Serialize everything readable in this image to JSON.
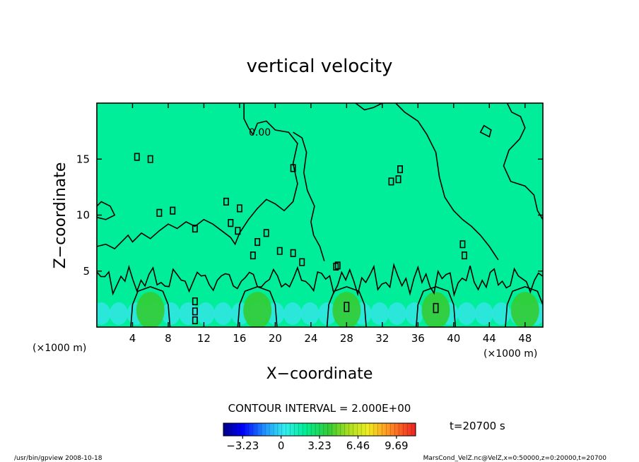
{
  "chart_data": {
    "type": "heatmap",
    "title": "vertical velocity",
    "xlabel": "X−coordinate",
    "ylabel": "Z−coordinate",
    "x_unit_left": "(×1000 m)",
    "x_unit_right": "(×1000 m)",
    "xlim": [
      0,
      50
    ],
    "ylim": [
      0,
      20
    ],
    "x_ticks": [
      4,
      8,
      12,
      16,
      20,
      24,
      28,
      32,
      36,
      40,
      44,
      48
    ],
    "y_ticks": [
      5,
      10,
      15
    ],
    "contour_label": "0.00",
    "contour_interval_text": "CONTOUR INTERVAL = 2.000E+00",
    "time_text": "t=20700 s",
    "colorbar": {
      "range": [
        -4.85,
        11.3
      ],
      "tick_values": [
        -3.23,
        0,
        3.23,
        6.46,
        9.69
      ],
      "tick_labels": [
        "−3.23",
        "0",
        "3.23",
        "6.46",
        "9.69"
      ]
    },
    "updraft_peaks_x": [
      6,
      18,
      28,
      38,
      48
    ],
    "footer_left": "/usr/bin/gpview   2008-10-18",
    "footer_right": "MarsCond_VelZ.nc@VelZ,x=0:50000,z=0:20000,t=20700"
  },
  "colors": {
    "background_field": "#00ee99",
    "updraft": "#33cc33",
    "downdraft": "#33e5e5",
    "contour": "#000000"
  }
}
